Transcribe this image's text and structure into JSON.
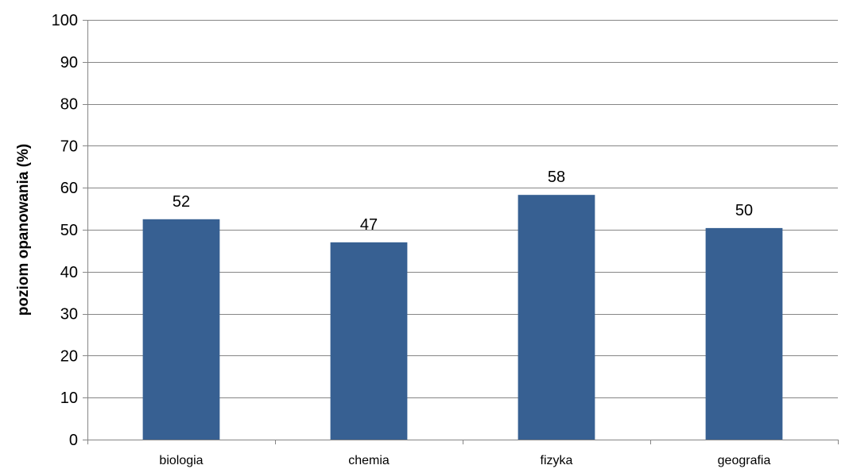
{
  "chart_data": {
    "type": "bar",
    "title": "",
    "xlabel": "",
    "ylabel": "poziom opanowania (%)",
    "categories": [
      "biologia",
      "chemia",
      "fizyka",
      "geografia"
    ],
    "values": [
      52.5,
      47,
      58.3,
      50.4
    ],
    "data_labels": [
      "52",
      "47",
      "58",
      "50"
    ],
    "ylim": [
      0,
      100
    ],
    "yticks": [
      0,
      10,
      20,
      30,
      40,
      50,
      60,
      70,
      80,
      90,
      100
    ],
    "ytick_labels": [
      "0",
      "10",
      "20",
      "30",
      "40",
      "50",
      "60",
      "70",
      "80",
      "90",
      "100"
    ],
    "grid": true,
    "legend": "none",
    "colors": {
      "bar": "#376092",
      "grid": "#868686",
      "axis": "#868686"
    }
  }
}
